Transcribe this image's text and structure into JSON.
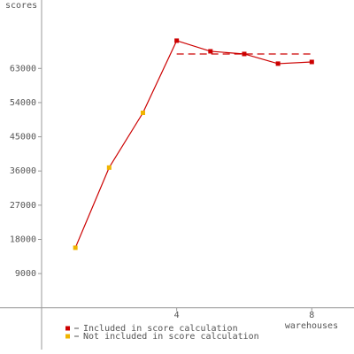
{
  "chart_data": {
    "type": "line",
    "y_label": "scores",
    "x_label": "warehouses",
    "xlim": [
      0,
      9.25
    ],
    "xticks": [
      4,
      8
    ],
    "ylim": [
      -11000,
      81000
    ],
    "yticks": [
      9000,
      18000,
      27000,
      36000,
      45000,
      54000,
      63000
    ],
    "line_color": "#cc0000",
    "series": [
      {
        "name": "Included in score calculation",
        "color": "#cc0000",
        "x": [
          4,
          5,
          6,
          7,
          8
        ],
        "values": [
          70300,
          67500,
          66800,
          64250,
          64700
        ]
      },
      {
        "name": "Not included in score calculation",
        "color": "#f0b400",
        "x": [
          1,
          2,
          3
        ],
        "values": [
          15800,
          36900,
          51300
        ]
      }
    ],
    "reference_line": {
      "value": 66800,
      "x": [
        4,
        8
      ],
      "color": "#cc0000"
    }
  }
}
